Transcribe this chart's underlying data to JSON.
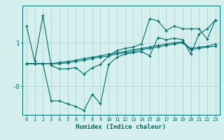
{
  "xlabel": "Humidex (Indice chaleur)",
  "bg_color": "#d4efed",
  "line_color": "#006b6b",
  "grid_color": "#aed8d5",
  "xlim": [
    -0.5,
    23.5
  ],
  "ylim": [
    -0.65,
    1.85
  ],
  "xticks": [
    0,
    1,
    2,
    3,
    4,
    5,
    6,
    7,
    8,
    9,
    10,
    11,
    12,
    13,
    14,
    15,
    16,
    17,
    18,
    19,
    20,
    21,
    22,
    23
  ],
  "ytick_vals": [
    0.0,
    1.0
  ],
  "ytick_labels": [
    "-0",
    "1"
  ],
  "line1_x": [
    0,
    1,
    2,
    3,
    4,
    5,
    6,
    7,
    8,
    9,
    10,
    11,
    12,
    13,
    14,
    15,
    16,
    17,
    18,
    19,
    20,
    21,
    22,
    23
  ],
  "line1_y": [
    1.38,
    0.58,
    1.62,
    0.48,
    0.4,
    0.4,
    0.43,
    0.28,
    0.43,
    0.5,
    0.7,
    0.82,
    0.87,
    0.9,
    0.97,
    1.55,
    1.5,
    1.28,
    1.38,
    1.32,
    1.32,
    1.32,
    1.08,
    1.52
  ],
  "line2_x": [
    0,
    1,
    2,
    3,
    4,
    5,
    6,
    7,
    8,
    9,
    10,
    11,
    12,
    13,
    14,
    15,
    16,
    17,
    18,
    19,
    20,
    21,
    22,
    23
  ],
  "line2_y": [
    0.52,
    0.52,
    0.52,
    -0.33,
    -0.33,
    -0.4,
    -0.46,
    -0.55,
    -0.18,
    -0.4,
    0.5,
    0.67,
    0.74,
    0.77,
    0.8,
    0.7,
    1.12,
    1.07,
    1.1,
    1.07,
    0.74,
    1.2,
    1.32,
    1.52
  ],
  "line3_x": [
    0,
    1,
    2,
    3,
    4,
    5,
    6,
    7,
    8,
    9,
    10,
    11,
    12,
    13,
    14,
    15,
    16,
    17,
    18,
    19,
    20,
    21,
    22,
    23
  ],
  "line3_y": [
    0.52,
    0.52,
    0.52,
    0.52,
    0.55,
    0.57,
    0.6,
    0.64,
    0.67,
    0.7,
    0.74,
    0.77,
    0.8,
    0.84,
    0.87,
    0.9,
    0.94,
    0.97,
    1.0,
    1.02,
    0.87,
    0.9,
    0.92,
    0.97
  ],
  "line4_x": [
    0,
    1,
    2,
    3,
    4,
    5,
    6,
    7,
    8,
    9,
    10,
    11,
    12,
    13,
    14,
    15,
    16,
    17,
    18,
    19,
    20,
    21,
    22,
    23
  ],
  "line4_y": [
    0.52,
    0.52,
    0.52,
    0.52,
    0.52,
    0.54,
    0.57,
    0.6,
    0.64,
    0.67,
    0.7,
    0.74,
    0.77,
    0.8,
    0.84,
    0.87,
    0.9,
    0.94,
    0.97,
    1.0,
    0.84,
    0.87,
    0.9,
    0.92
  ]
}
